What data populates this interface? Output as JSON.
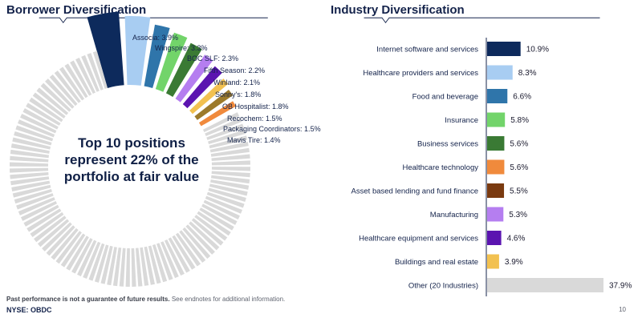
{
  "left_title": "Borrower Diversification",
  "right_title": "Industry Diversification",
  "center_text": "Top 10 positions represent 22% of the portfolio at fair value",
  "footnote_bold": "Past performance is not a guarantee of future results.",
  "footnote_rest": " See endnotes for additional information.",
  "ticker": "NYSE: OBDC",
  "page_number": "10",
  "colors": {
    "navy": "#14234b",
    "other_gray": "#d9d9d9"
  },
  "chart_data": [
    {
      "type": "pie",
      "title": "",
      "slices": [
        {
          "label": "Associa: 3.9%",
          "value": 3.9,
          "color": "#0d2a5c"
        },
        {
          "label": "Wingspire: 3.3%",
          "value": 3.3,
          "color": "#a8cdf2"
        },
        {
          "label": "BOC SLF: 2.3%",
          "value": 2.3,
          "color": "#2f75aa"
        },
        {
          "label": "Fifth Season: 2.2%",
          "value": 2.2,
          "color": "#72d46a"
        },
        {
          "label": "Winland: 2.1%",
          "value": 2.1,
          "color": "#3a7a34"
        },
        {
          "label": "Sonny's: 1.8%",
          "value": 1.8,
          "color": "#b57ef0"
        },
        {
          "label": "OB Hospitalist: 1.8%",
          "value": 1.8,
          "color": "#5b14b0"
        },
        {
          "label": "Recochem: 1.5%",
          "value": 1.5,
          "color": "#f2c150"
        },
        {
          "label": "Packaging Coordinators: 1.5%",
          "value": 1.5,
          "color": "#9c7a2a"
        },
        {
          "label": "Mavis Tire: 1.4%",
          "value": 1.4,
          "color": "#f08a3c"
        }
      ],
      "other_value": 78.2,
      "other_color": "#d9d9d9"
    },
    {
      "type": "bar",
      "orientation": "horizontal",
      "title": "",
      "categories": [
        "Internet software and services",
        "Healthcare providers and services",
        "Food and beverage",
        "Insurance",
        "Business services",
        "Healthcare technology",
        "Asset based lending and fund finance",
        "Manufacturing",
        "Healthcare equipment and services",
        "Buildings and real estate",
        "Other (20 Industries)"
      ],
      "values": [
        10.9,
        8.3,
        6.6,
        5.8,
        5.6,
        5.6,
        5.5,
        5.3,
        4.6,
        3.9,
        37.9
      ],
      "value_labels": [
        "10.9%",
        "8.3%",
        "6.6%",
        "5.8%",
        "5.6%",
        "5.6%",
        "5.5%",
        "5.3%",
        "4.6%",
        "3.9%",
        "37.9%"
      ],
      "colors": [
        "#0d2a5c",
        "#a8cdf2",
        "#2f75aa",
        "#72d46a",
        "#3a7a34",
        "#f08a3c",
        "#7a3a10",
        "#b57ef0",
        "#5b14b0",
        "#f2c150",
        "#d9d9d9"
      ],
      "xlim": [
        0,
        40
      ],
      "grid": false,
      "legend": "none"
    }
  ]
}
